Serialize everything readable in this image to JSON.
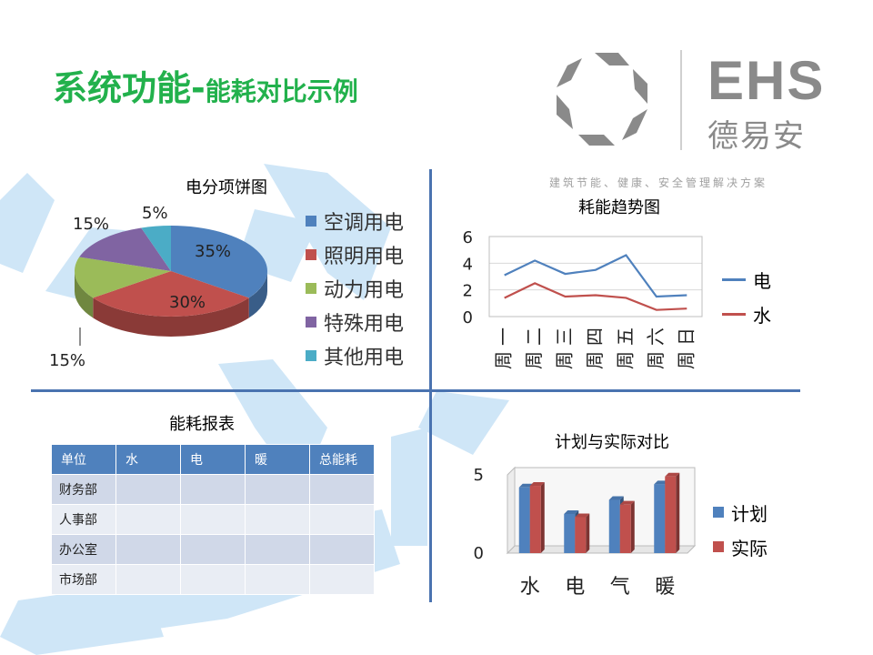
{
  "title": {
    "main": "系统功能-",
    "sub": "能耗对比示例"
  },
  "logo": {
    "brand": "EHS",
    "brand_cn": "德易安",
    "tagline": "建筑节能、健康、安全管理解决方案",
    "color": "#8a8a8a"
  },
  "pie": {
    "title": "电分项饼图",
    "labels": [
      "35%",
      "30%",
      "15%",
      "15%",
      "5%"
    ],
    "legend": [
      "空调用电",
      "照明用电",
      "动力用电",
      "特殊用电",
      "其他用电"
    ]
  },
  "line": {
    "title": "耗能趋势图",
    "legend": [
      "电",
      "水"
    ]
  },
  "report": {
    "title": "能耗报表",
    "headers": [
      "单位",
      "水",
      "电",
      "暖",
      "总能耗"
    ],
    "rows": [
      [
        "财务部",
        "",
        "",
        "",
        ""
      ],
      [
        "人事部",
        "",
        "",
        "",
        ""
      ],
      [
        "办公室",
        "",
        "",
        "",
        ""
      ],
      [
        "市场部",
        "",
        "",
        "",
        ""
      ]
    ]
  },
  "bar": {
    "title": "计划与实际对比",
    "legend": [
      "计划",
      "实际"
    ]
  },
  "chart_data": [
    {
      "type": "pie",
      "title": "电分项饼图",
      "categories": [
        "空调用电",
        "照明用电",
        "动力用电",
        "特殊用电",
        "其他用电"
      ],
      "values": [
        35,
        30,
        15,
        15,
        5
      ],
      "colors": [
        "#4f81bd",
        "#c0504d",
        "#9bbb59",
        "#8064a2",
        "#4bacc6"
      ],
      "legend_position": "right"
    },
    {
      "type": "line",
      "title": "耗能趋势图",
      "categories": [
        "周一",
        "周二",
        "周三",
        "周四",
        "周五",
        "周六",
        "周日"
      ],
      "series": [
        {
          "name": "电",
          "values": [
            3.1,
            4.2,
            3.2,
            3.5,
            4.6,
            1.5,
            1.6
          ],
          "color": "#4f81bd"
        },
        {
          "name": "水",
          "values": [
            1.4,
            2.5,
            1.5,
            1.6,
            1.4,
            0.5,
            0.6
          ],
          "color": "#c0504d"
        }
      ],
      "yticks": [
        0,
        2,
        4,
        6
      ],
      "ylim": [
        0,
        6
      ],
      "grid": true,
      "legend_position": "right"
    },
    {
      "type": "bar",
      "title": "计划与实际对比",
      "categories": [
        "水",
        "电",
        "气",
        "暖"
      ],
      "series": [
        {
          "name": "计划",
          "values": [
            4.2,
            2.5,
            3.4,
            4.4
          ],
          "color": "#4f81bd"
        },
        {
          "name": "实际",
          "values": [
            4.3,
            2.3,
            3.1,
            4.9
          ],
          "color": "#c0504d"
        }
      ],
      "yticks": [
        0,
        5
      ],
      "ylim": [
        0,
        5
      ],
      "legend_position": "right"
    }
  ]
}
